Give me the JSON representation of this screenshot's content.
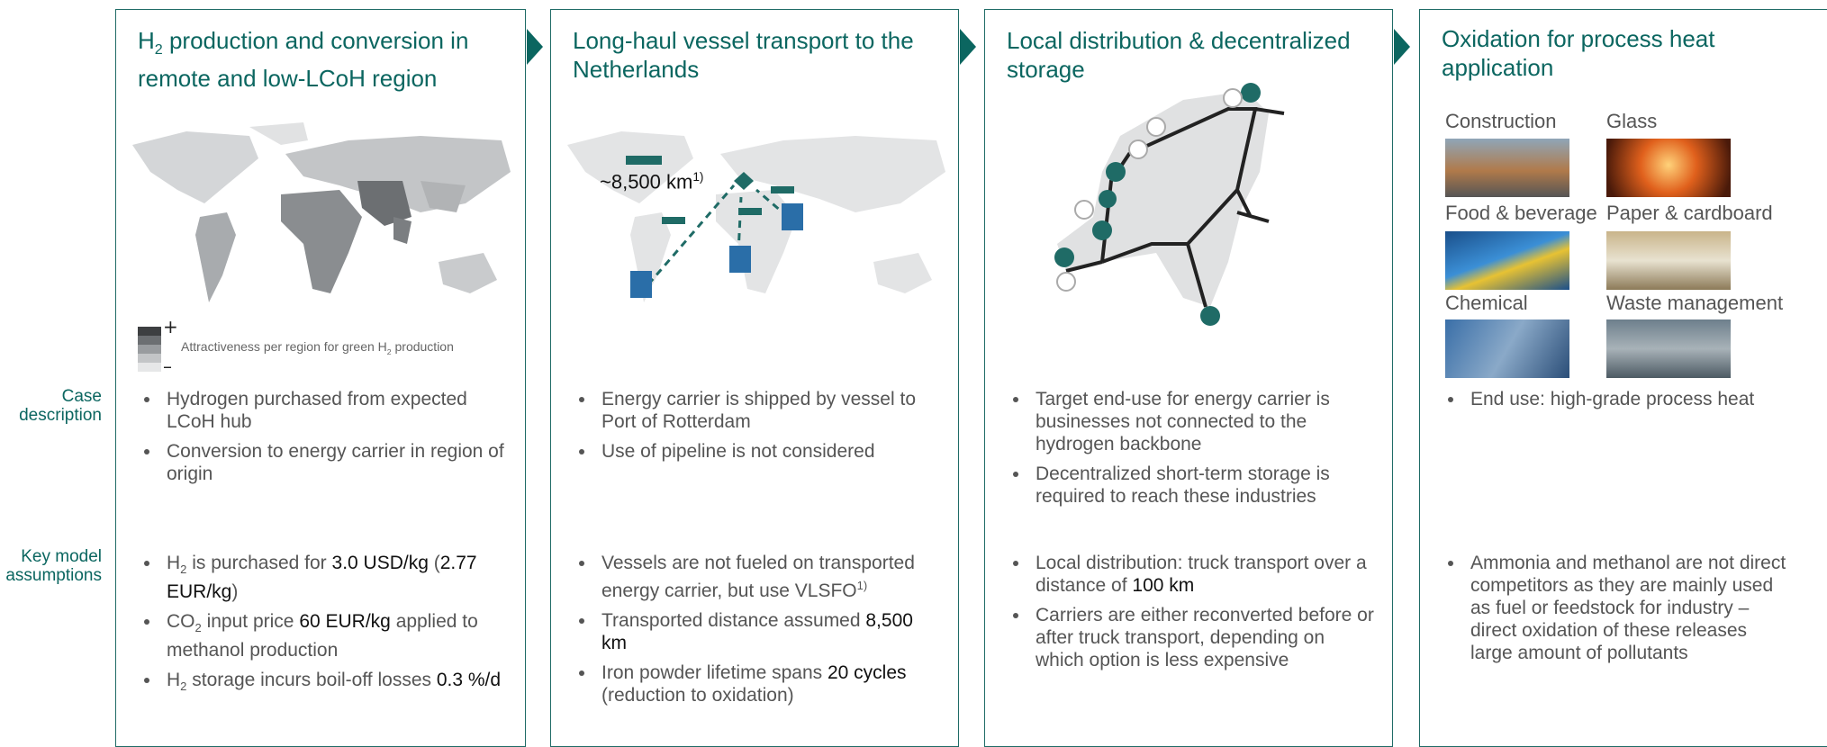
{
  "row_labels": [
    "Case description",
    "Key model assumptions"
  ],
  "panels": [
    {
      "title": [
        "H",
        "2",
        " production and conversion in remote and low-LCoH region"
      ],
      "legend": {
        "plus": "+",
        "minus": "–",
        "text": [
          "Attractiveness per region for green H",
          "2",
          " production"
        ]
      },
      "case_description": [
        "Hydrogen purchased from expected LCoH hub",
        "Conversion to energy carrier in region of origin"
      ],
      "key_assumptions": [
        [
          "H",
          "2",
          " is purchased for ",
          "3.0 USD/kg",
          " (",
          "2.77 EUR/kg",
          ")"
        ],
        [
          "CO",
          "2",
          " input price ",
          "60 EUR/kg",
          " applied to methanol production"
        ],
        [
          "H",
          "2",
          " storage incurs boil-off losses ",
          "0.3 %/d"
        ]
      ]
    },
    {
      "title": [
        "Long-haul vessel transport to the Netherlands"
      ],
      "map_label": [
        "~8,500 km",
        "1)"
      ],
      "case_description": [
        "Energy carrier is shipped by vessel to Port of Rotterdam",
        "Use of pipeline is not considered"
      ],
      "key_assumptions": [
        [
          "Vessels are not fueled on transported energy carrier, but use VLSFO",
          "1)"
        ],
        [
          "Transported distance assumed ",
          "8,500 km"
        ],
        [
          "Iron powder lifetime spans ",
          "20 cycles",
          " (reduction to oxidation)"
        ]
      ]
    },
    {
      "title": [
        "Local distribution & decentralized storage"
      ],
      "case_description": [
        "Target end-use for energy carrier is businesses not connected to the hydrogen backbone",
        "Decentralized short-term storage is required to reach these industries"
      ],
      "key_assumptions": [
        [
          "Local distribution: truck transport over a distance of ",
          "100 km"
        ],
        [
          "Carriers are either reconverted before or after truck transport, depending on which option is less expensive"
        ]
      ]
    },
    {
      "title": [
        "Oxidation for process heat application"
      ],
      "industries": [
        "Construction",
        "Glass",
        "Food & beverage",
        "Paper & cardboard",
        "Chemical",
        "Waste management"
      ],
      "case_description": [
        "End use: high-grade process heat"
      ],
      "key_assumptions": [
        [
          "Ammonia and methanol are not direct competitors as they are mainly used as fuel or feedstock for industry – direct oxidation of these releases large amount of pollutants"
        ]
      ]
    }
  ]
}
